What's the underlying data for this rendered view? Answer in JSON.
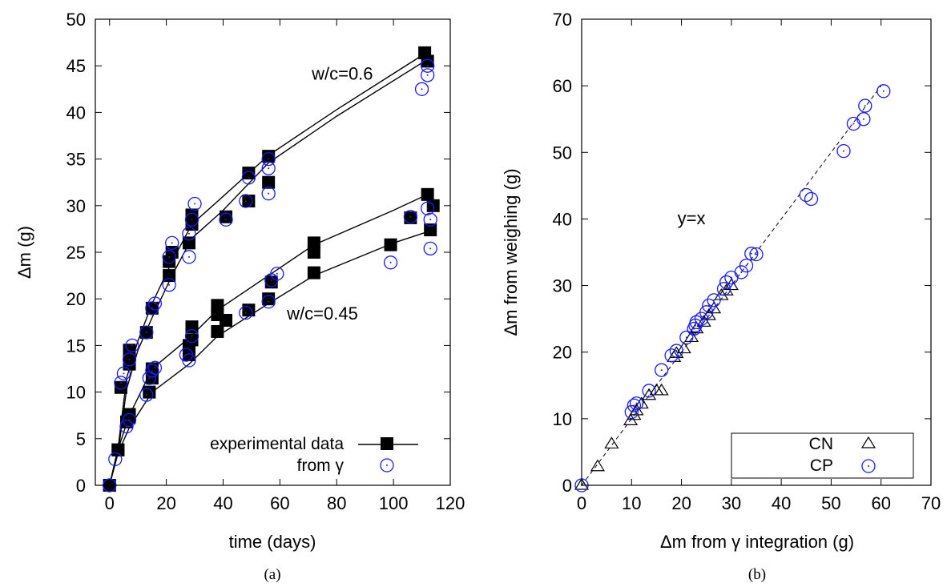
{
  "chart_data": [
    {
      "type": "scatter",
      "caption": "(a)",
      "xlabel": "time (days)",
      "ylabel": "Δm (g)",
      "xlim": [
        -5,
        120
      ],
      "ylim": [
        0,
        50
      ],
      "xticks": [
        0,
        20,
        40,
        60,
        80,
        100,
        120
      ],
      "yticks": [
        0,
        5,
        10,
        15,
        20,
        25,
        30,
        35,
        40,
        45,
        50
      ],
      "annotations": [
        {
          "text": "w/c=0.6",
          "x": 82,
          "y": 43.5
        },
        {
          "text": "w/c=0.45",
          "x": 75,
          "y": 17.8
        }
      ],
      "legend": {
        "position": "bottom-right",
        "entries": [
          {
            "label": "experimental data",
            "marker": "filled-square",
            "color": "#000000"
          },
          {
            "label": "from γ",
            "marker": "open-circle",
            "color": "#1a1aff"
          }
        ]
      },
      "series": [
        {
          "name": "experimental data",
          "group": "w/c=0.6",
          "x": [
            0,
            3,
            4,
            7,
            7,
            7,
            13,
            15,
            21,
            21,
            22,
            28,
            29,
            29,
            41,
            49,
            49,
            56,
            56,
            111,
            112
          ],
          "y": [
            0,
            3.8,
            10.5,
            13,
            14,
            14.5,
            16.4,
            19,
            22.5,
            24,
            25,
            26,
            28,
            29,
            28.8,
            30.5,
            33.5,
            32.5,
            35.3,
            46.4,
            45.5
          ]
        },
        {
          "name": "from γ",
          "group": "w/c=0.6",
          "x": [
            0,
            2,
            4,
            5,
            7,
            8,
            13,
            15,
            16,
            21,
            21,
            22,
            28,
            28,
            29,
            30,
            41,
            48,
            49,
            56,
            56,
            56,
            110,
            112,
            112
          ],
          "y": [
            0,
            2.8,
            11,
            12,
            13.5,
            15,
            16.4,
            19,
            19.5,
            21.5,
            24.5,
            26,
            24.5,
            27,
            28.5,
            30.2,
            28.5,
            30.5,
            33,
            31.3,
            34,
            35,
            42.5,
            44,
            45
          ]
        },
        {
          "name": "experimental data",
          "group": "w/c=0.45",
          "x": [
            0,
            3,
            6,
            7,
            7,
            14,
            15,
            15,
            28,
            28,
            29,
            29,
            38,
            38,
            38,
            41,
            49,
            56,
            57,
            72,
            72,
            72,
            99,
            106,
            112,
            113,
            114
          ],
          "y": [
            0,
            3.8,
            6.8,
            7.3,
            7.6,
            10,
            11.5,
            12.5,
            14,
            15,
            15.6,
            17,
            16.5,
            18.3,
            19.3,
            17.7,
            18.8,
            20,
            21.8,
            22.8,
            25,
            26,
            25.8,
            28.7,
            31.2,
            27.4,
            30
          ]
        },
        {
          "name": "from γ",
          "group": "w/c=0.45",
          "x": [
            0,
            6,
            7,
            13,
            14,
            15,
            16,
            27,
            28,
            29,
            48,
            56,
            57,
            59,
            99,
            106,
            112,
            113,
            113
          ],
          "y": [
            0,
            6.3,
            7,
            9.7,
            11.5,
            12.3,
            12.6,
            14,
            13.4,
            16,
            18.5,
            19.7,
            22,
            22.7,
            23.9,
            28.8,
            29.7,
            28.5,
            25.4
          ]
        }
      ],
      "fit_lines": [
        {
          "group": "w/c=0.6",
          "x": [
            0,
            3,
            6,
            10,
            15,
            22,
            29,
            40,
            56,
            80,
            111
          ],
          "y_lower": [
            0,
            3.5,
            10.3,
            14.5,
            18,
            22.5,
            26.5,
            29.5,
            34.6,
            39.6,
            45.5
          ],
          "y_upper": [
            0,
            4,
            11.5,
            15.5,
            19.5,
            24,
            28,
            31,
            35.4,
            40.3,
            46.3
          ]
        },
        {
          "group": "w/c=0.45",
          "x": [
            0,
            3,
            7,
            15,
            28,
            38,
            56,
            72,
            100,
            112
          ],
          "y_lower": [
            0,
            3.5,
            6.2,
            10,
            13,
            16,
            19.5,
            22.5,
            26,
            27.2
          ],
          "y_upper": [
            0,
            3.9,
            7.5,
            12.5,
            15.8,
            18.8,
            22.5,
            25.8,
            29.5,
            31.2
          ]
        }
      ]
    },
    {
      "type": "scatter",
      "caption": "(b)",
      "xlabel": "Δm from γ integration (g)",
      "ylabel": "Δm from weighing (g)",
      "xlim": [
        0,
        70
      ],
      "ylim": [
        0,
        70
      ],
      "xticks": [
        0,
        10,
        20,
        30,
        40,
        50,
        60,
        70
      ],
      "yticks": [
        0,
        10,
        20,
        30,
        40,
        50,
        60,
        70
      ],
      "annotations": [
        {
          "text": "y=x",
          "x": 22,
          "y": 39.2
        }
      ],
      "reference_line": {
        "label": "y=x",
        "style": "dashed",
        "x": [
          0,
          60
        ],
        "y": [
          0,
          60
        ]
      },
      "legend": {
        "position": "bottom-right",
        "entries": [
          {
            "label": "CN",
            "marker": "open-triangle",
            "color": "#000000"
          },
          {
            "label": "CP",
            "marker": "open-circle",
            "color": "#1a1aff"
          }
        ]
      },
      "series": [
        {
          "name": "CN",
          "x": [
            0,
            3.2,
            6,
            9.8,
            10.5,
            11,
            12,
            13.5,
            15,
            16,
            18.5,
            19,
            20.5,
            22,
            23,
            24.5,
            25.5,
            26.5,
            28,
            29,
            30
          ],
          "y": [
            0,
            2.8,
            6.2,
            9.7,
            10.5,
            11.2,
            12.2,
            13.5,
            14.2,
            14.2,
            19.2,
            19.8,
            20.5,
            22.2,
            23.5,
            24.5,
            25.5,
            26.5,
            28.5,
            29.2,
            30
          ]
        },
        {
          "name": "CP",
          "x": [
            0,
            10,
            10.5,
            11,
            13.5,
            16,
            18,
            19,
            21,
            22.5,
            22.8,
            23,
            24,
            25,
            25.5,
            26.5,
            28.5,
            29,
            30,
            32,
            33,
            34,
            35,
            45,
            46,
            52.5,
            54.5,
            56.5,
            56.8,
            60.5
          ],
          "y": [
            0,
            11,
            12,
            12.3,
            14.2,
            17.3,
            19.5,
            20.2,
            22.2,
            23.5,
            24,
            24.5,
            25,
            26,
            27,
            27.8,
            29.5,
            30.5,
            31.2,
            32,
            33,
            34.8,
            34.7,
            43.6,
            43,
            50.2,
            54.3,
            55,
            57,
            59.2
          ]
        }
      ]
    }
  ]
}
